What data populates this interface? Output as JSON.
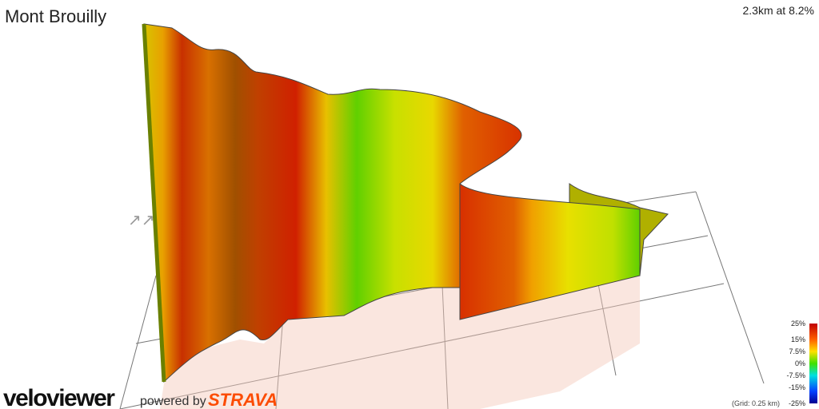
{
  "header": {
    "title": "Mont Brouilly",
    "summary": "2.3km at 8.2%"
  },
  "legend": {
    "labels": [
      "25%",
      "15%",
      "7.5%",
      "0%",
      "-7.5%",
      "-15%",
      "-25%"
    ],
    "grid_note": "(Grid: 0.25 km)"
  },
  "footer": {
    "brand": "veloviewer",
    "powered_by": "powered by",
    "partner": "STRAVA"
  }
}
